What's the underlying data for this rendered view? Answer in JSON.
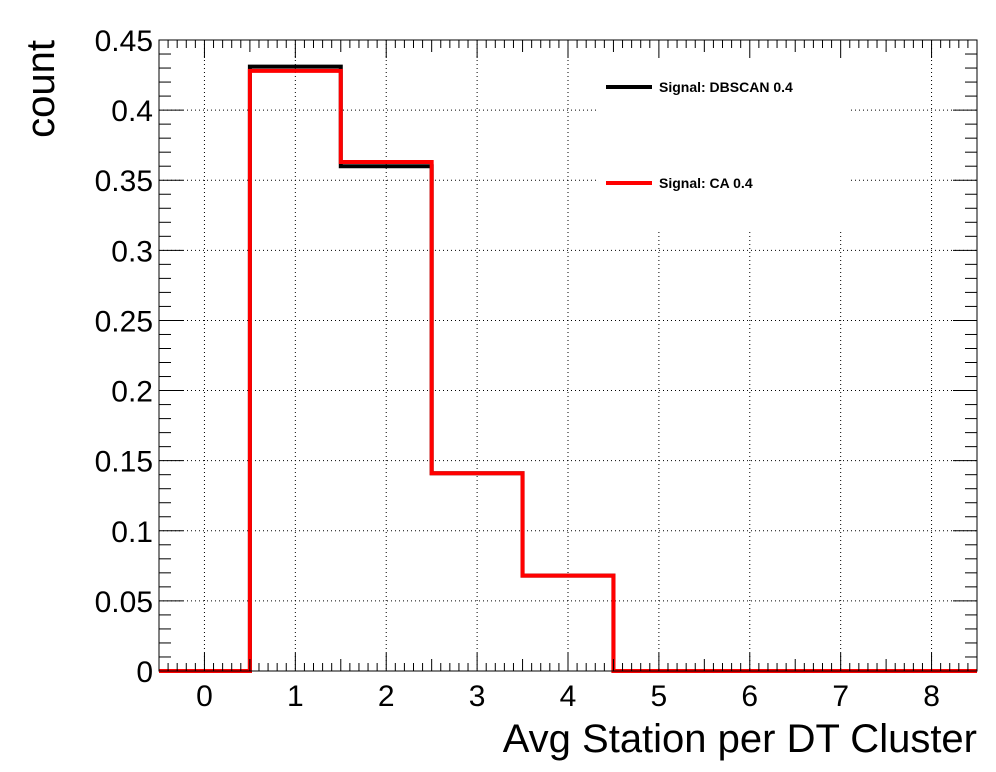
{
  "chart_data": {
    "type": "histogram",
    "xlabel": "Avg Station per DT Cluster",
    "ylabel": "count",
    "xlim": [
      -0.5,
      8.5
    ],
    "ylim": [
      0,
      0.45
    ],
    "xticks": [
      "0",
      "1",
      "2",
      "3",
      "4",
      "5",
      "6",
      "7",
      "8"
    ],
    "yticks": [
      "0",
      "0.05",
      "0.1",
      "0.15",
      "0.2",
      "0.25",
      "0.3",
      "0.35",
      "0.4",
      "0.45"
    ],
    "grid": true,
    "legend_position": "top-right",
    "bin_edges": [
      -0.5,
      0.5,
      1.5,
      2.5,
      3.5,
      4.5,
      5.5,
      6.5,
      7.5,
      8.5
    ],
    "series": [
      {
        "name": "Signal: DBSCAN 0.4",
        "color": "#000000",
        "values": [
          0,
          0.431,
          0.36,
          0.141,
          0.068,
          0,
          0,
          0,
          0
        ]
      },
      {
        "name": "Signal: CA 0.4",
        "color": "#ff0000",
        "values": [
          0,
          0.428,
          0.363,
          0.141,
          0.068,
          0,
          0,
          0,
          0
        ]
      }
    ]
  }
}
